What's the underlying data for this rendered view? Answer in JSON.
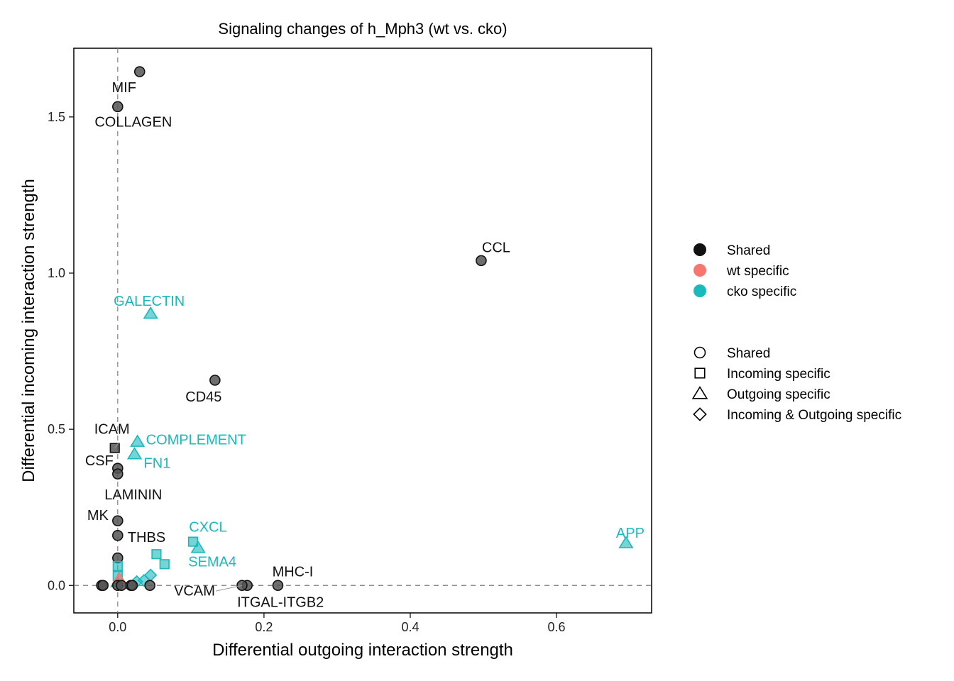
{
  "chart_data": {
    "type": "scatter",
    "title": "Signaling changes of h_Mph3 (wt vs. cko)",
    "xlabel": "Differential outgoing interaction strength",
    "ylabel": "Differential incoming interaction strength",
    "xlim": [
      -0.06,
      0.73
    ],
    "ylim": [
      -0.088,
      1.72
    ],
    "x_ticks": [
      0.0,
      0.2,
      0.4,
      0.6
    ],
    "x_tick_labels": [
      "0.0",
      "0.2",
      "0.4",
      "0.6"
    ],
    "y_ticks": [
      0.0,
      0.5,
      1.0,
      1.5
    ],
    "y_tick_labels": [
      "0.0",
      "0.5",
      "1.0",
      "1.5"
    ],
    "reference_lines": {
      "x": 0,
      "y": 0,
      "style": "dashed"
    },
    "grid": false,
    "legend_position": "right",
    "colors": {
      "Shared": "#111111",
      "wt specific": "#F8766D",
      "cko specific": "#1BB8BC"
    },
    "legend_color": {
      "entries": [
        {
          "label": "Shared",
          "color": "#111111"
        },
        {
          "label": "wt specific",
          "color": "#F8766D"
        },
        {
          "label": "cko specific",
          "color": "#1BB8BC"
        }
      ]
    },
    "legend_shape": {
      "entries": [
        {
          "label": "Shared",
          "shape": "circle"
        },
        {
          "label": "Incoming specific",
          "shape": "square"
        },
        {
          "label": "Outgoing specific",
          "shape": "triangle"
        },
        {
          "label": "Incoming & Outgoing specific",
          "shape": "diamond"
        }
      ]
    },
    "points": [
      {
        "label": "MIF",
        "x": 0.03,
        "y": 1.645,
        "group": "Shared",
        "shape": "circle"
      },
      {
        "label": "COLLAGEN",
        "x": 0.0,
        "y": 1.533,
        "group": "Shared",
        "shape": "circle"
      },
      {
        "label": "CCL",
        "x": 0.497,
        "y": 1.04,
        "group": "Shared",
        "shape": "circle"
      },
      {
        "label": "GALECTIN",
        "x": 0.045,
        "y": 0.87,
        "group": "cko specific",
        "shape": "triangle"
      },
      {
        "label": "CD45",
        "x": 0.133,
        "y": 0.657,
        "group": "Shared",
        "shape": "circle"
      },
      {
        "label": "COMPLEMENT",
        "x": 0.027,
        "y": 0.46,
        "group": "cko specific",
        "shape": "triangle"
      },
      {
        "label": "ICAM",
        "x": -0.004,
        "y": 0.44,
        "group": "Shared",
        "shape": "square"
      },
      {
        "label": "FN1",
        "x": 0.023,
        "y": 0.42,
        "group": "cko specific",
        "shape": "triangle"
      },
      {
        "label": "CSF",
        "x": 0.0,
        "y": 0.375,
        "group": "Shared",
        "shape": "circle"
      },
      {
        "label": "LAMININ",
        "x": 0.0,
        "y": 0.357,
        "group": "Shared",
        "shape": "circle"
      },
      {
        "label": "MK",
        "x": 0.0,
        "y": 0.207,
        "group": "Shared",
        "shape": "circle"
      },
      {
        "label": "THBS",
        "x": 0.0,
        "y": 0.16,
        "group": "Shared",
        "shape": "circle"
      },
      {
        "label": "CXCL",
        "x": 0.103,
        "y": 0.14,
        "group": "cko specific",
        "shape": "square"
      },
      {
        "label": "SEMA4",
        "x": 0.11,
        "y": 0.12,
        "group": "cko specific",
        "shape": "triangle"
      },
      {
        "label": "APP",
        "x": 0.695,
        "y": 0.135,
        "group": "cko specific",
        "shape": "triangle"
      },
      {
        "label": "MHC-I",
        "x": 0.219,
        "y": 0.0,
        "group": "Shared",
        "shape": "circle"
      },
      {
        "label": "ITGAL-ITGB2",
        "x": 0.177,
        "y": 0.0,
        "group": "Shared",
        "shape": "circle"
      },
      {
        "label": "VCAM",
        "x": 0.17,
        "y": 0.0,
        "group": "Shared",
        "shape": "circle"
      },
      {
        "label": "",
        "x": 0.053,
        "y": 0.1,
        "group": "cko specific",
        "shape": "square"
      },
      {
        "label": "",
        "x": 0.064,
        "y": 0.068,
        "group": "cko specific",
        "shape": "square"
      },
      {
        "label": "",
        "x": 0.0,
        "y": 0.088,
        "group": "Shared",
        "shape": "circle"
      },
      {
        "label": "",
        "x": 0.045,
        "y": 0.033,
        "group": "cko specific",
        "shape": "diamond"
      },
      {
        "label": "",
        "x": 0.036,
        "y": 0.016,
        "group": "cko specific",
        "shape": "diamond"
      },
      {
        "label": "",
        "x": 0.026,
        "y": 0.012,
        "group": "cko specific",
        "shape": "diamond"
      },
      {
        "label": "",
        "x": 0.0,
        "y": 0.062,
        "group": "cko specific",
        "shape": "square"
      },
      {
        "label": "",
        "x": 0.0,
        "y": 0.03,
        "group": "cko specific",
        "shape": "square"
      },
      {
        "label": "",
        "x": 0.0,
        "y": 0.01,
        "group": "cko specific",
        "shape": "triangle"
      },
      {
        "label": "",
        "x": 0.002,
        "y": 0.02,
        "group": "wt specific",
        "shape": "triangle"
      },
      {
        "label": "",
        "x": -0.022,
        "y": 0.0,
        "group": "Shared",
        "shape": "circle"
      },
      {
        "label": "",
        "x": -0.02,
        "y": 0.0,
        "group": "Shared",
        "shape": "circle"
      },
      {
        "label": "",
        "x": 0.0,
        "y": 0.0,
        "group": "Shared",
        "shape": "circle"
      },
      {
        "label": "",
        "x": 0.005,
        "y": 0.0,
        "group": "Shared",
        "shape": "circle"
      },
      {
        "label": "",
        "x": 0.018,
        "y": 0.0,
        "group": "Shared",
        "shape": "circle"
      },
      {
        "label": "",
        "x": 0.02,
        "y": 0.0,
        "group": "Shared",
        "shape": "circle"
      },
      {
        "label": "",
        "x": 0.044,
        "y": 0.0,
        "group": "Shared",
        "shape": "circle"
      }
    ]
  }
}
